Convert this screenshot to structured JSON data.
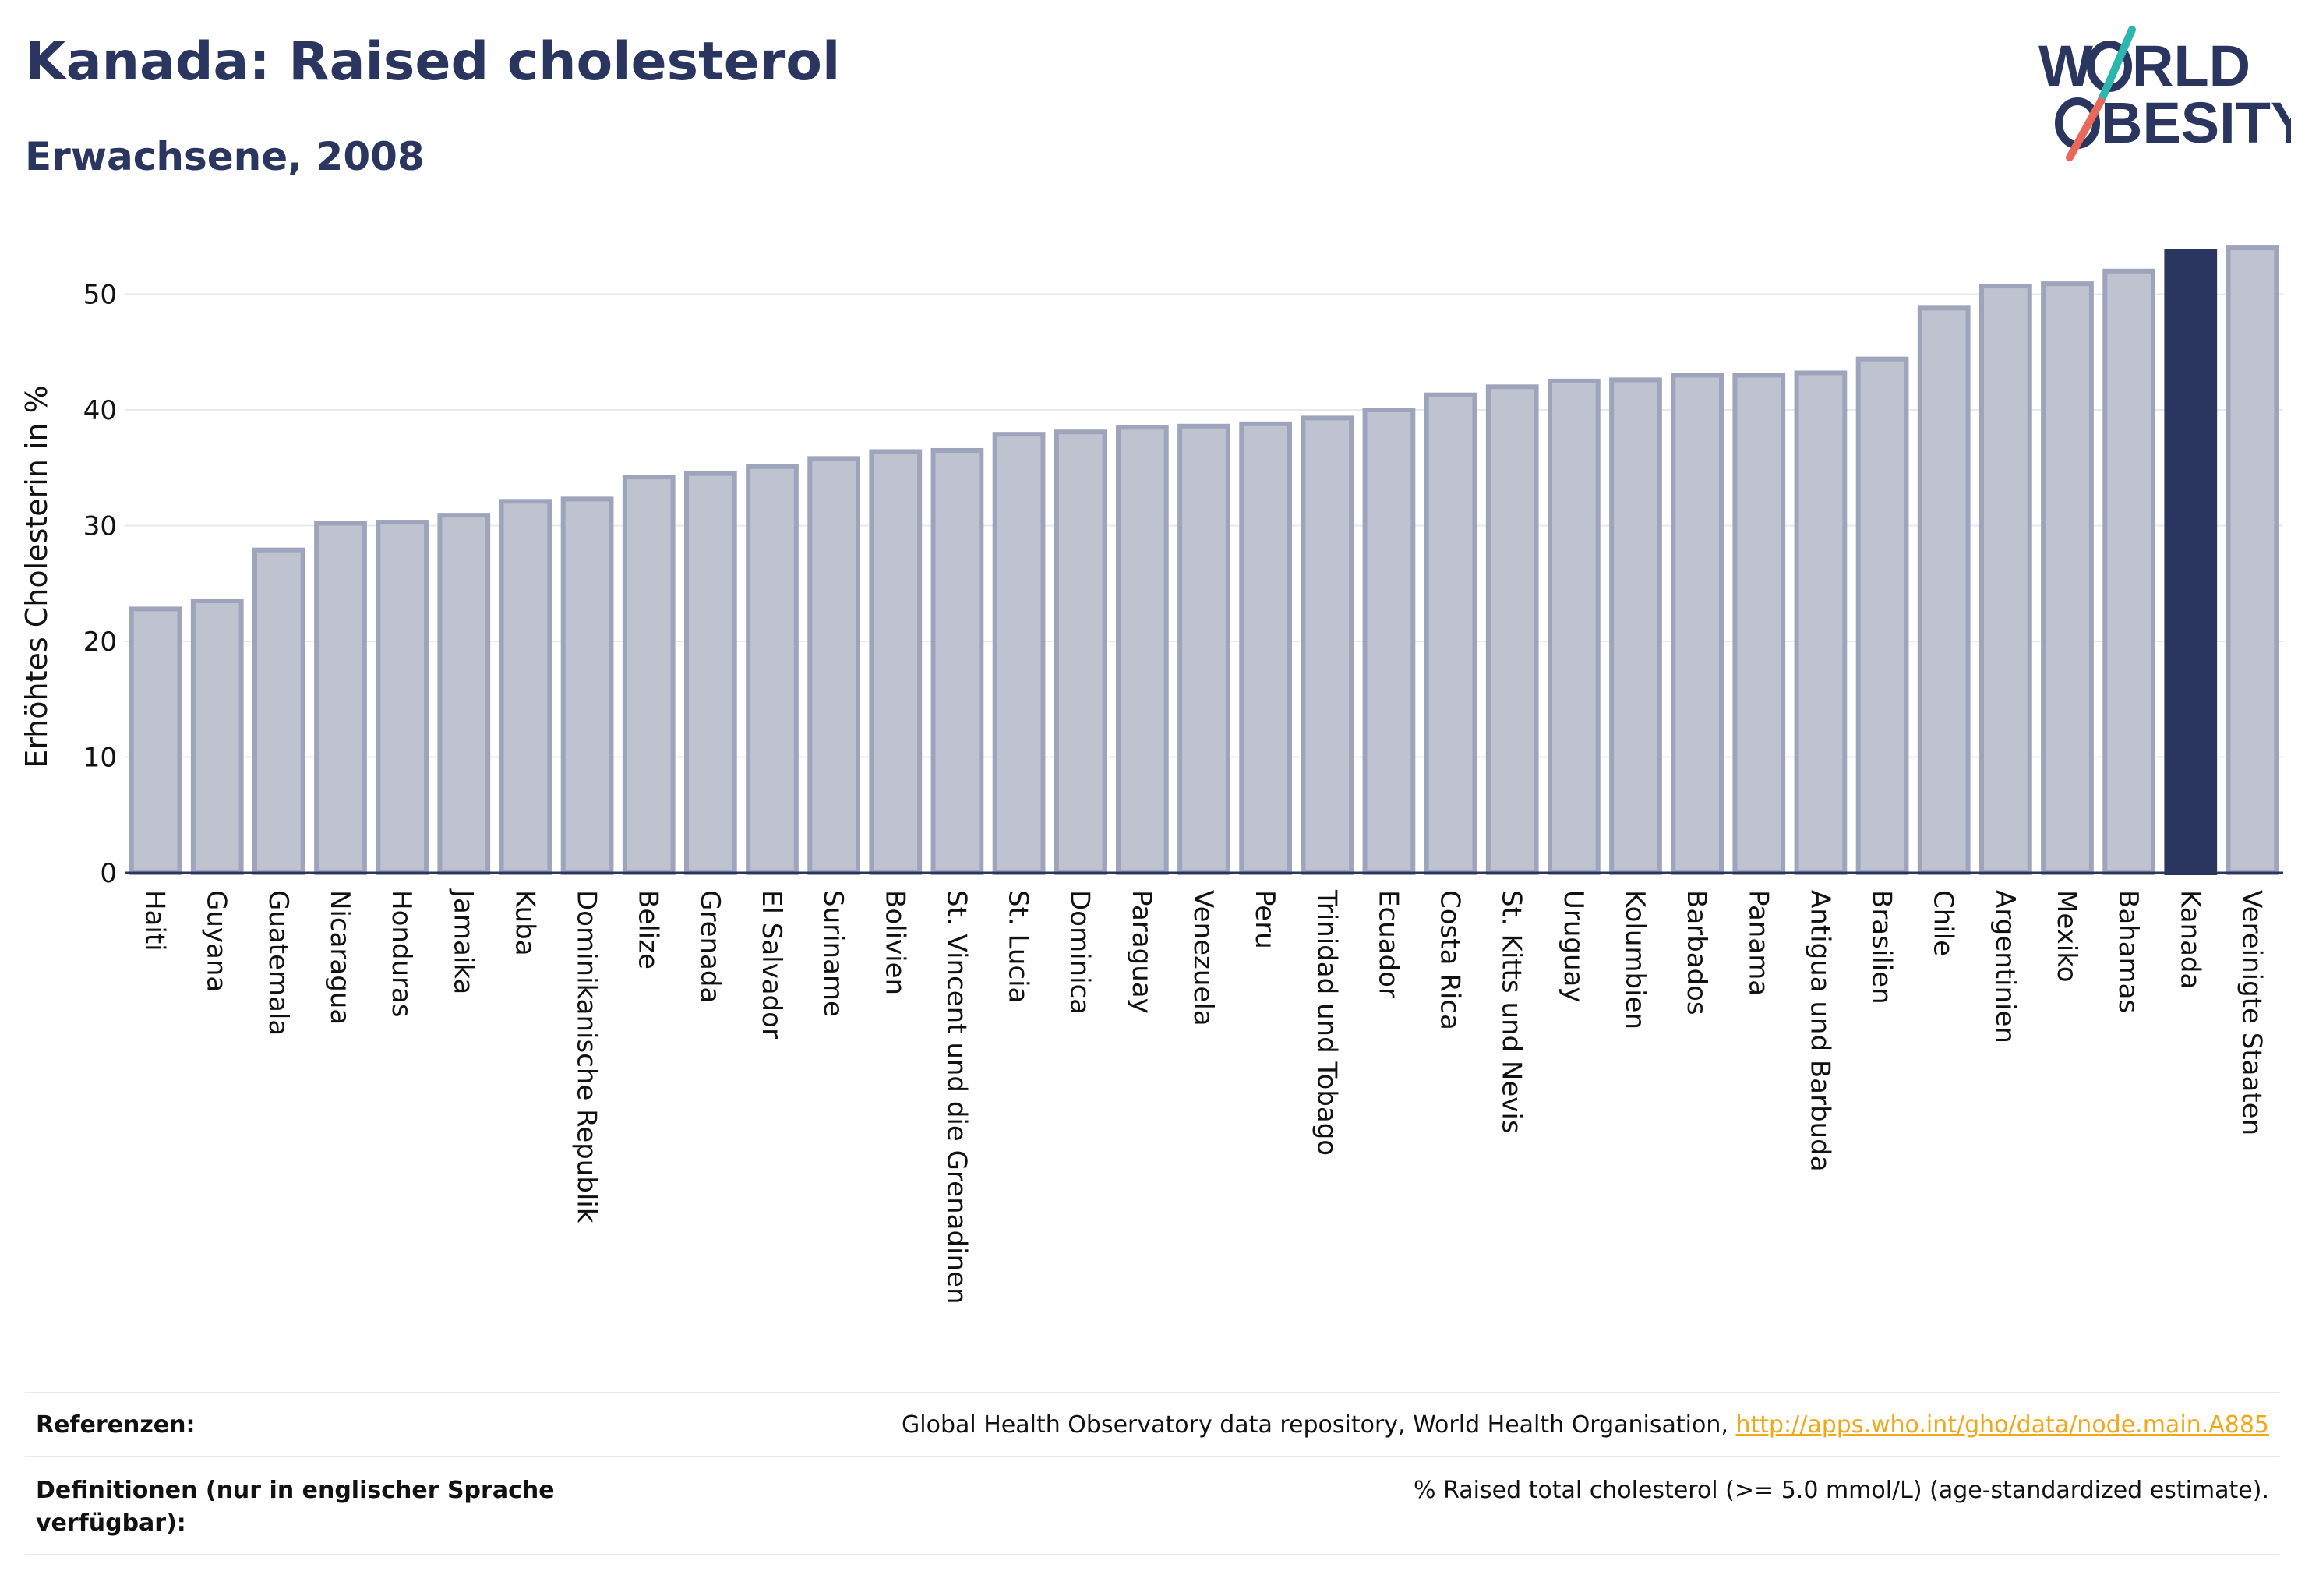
{
  "header": {
    "title": "Kanada: Raised cholesterol",
    "subtitle": "Erwachsene, 2008"
  },
  "logo": {
    "line1": "W",
    "line1b": "RLD",
    "line2": "BESITY",
    "colors": {
      "navy": "#2b3660",
      "teal": "#2bb6b0",
      "coral": "#e8685a"
    }
  },
  "chart_data": {
    "type": "bar",
    "title": "Kanada: Raised cholesterol",
    "subtitle": "Erwachsene, 2008",
    "ylabel": "Erhöhtes Cholesterin in %",
    "xlabel": "",
    "ylim": [
      0,
      55
    ],
    "yticks": [
      0,
      10,
      20,
      30,
      40,
      50
    ],
    "grid": true,
    "highlight": "Kanada",
    "colors": {
      "bar": "#bfc3d0",
      "bar_edge": "#9ea4bc",
      "highlight": "#2b3660"
    },
    "categories": [
      "Haiti",
      "Guyana",
      "Guatemala",
      "Nicaragua",
      "Honduras",
      "Jamaika",
      "Kuba",
      "Dominikanische Republik",
      "Belize",
      "Grenada",
      "El Salvador",
      "Suriname",
      "Bolivien",
      "St. Vincent und die Grenadinen",
      "St. Lucia",
      "Dominica",
      "Paraguay",
      "Venezuela",
      "Peru",
      "Trinidad und Tobago",
      "Ecuador",
      "Costa Rica",
      "St. Kitts und Nevis",
      "Uruguay",
      "Kolumbien",
      "Barbados",
      "Panama",
      "Antigua und Barbuda",
      "Brasilien",
      "Chile",
      "Argentinien",
      "Mexiko",
      "Bahamas",
      "Kanada",
      "Vereinigte Staaten"
    ],
    "values": [
      22.8,
      23.5,
      27.9,
      30.2,
      30.3,
      30.9,
      32.1,
      32.3,
      34.2,
      34.5,
      35.1,
      35.8,
      36.4,
      36.5,
      37.9,
      38.1,
      38.5,
      38.6,
      38.8,
      39.3,
      40.0,
      41.3,
      42.0,
      42.5,
      42.6,
      43.0,
      43.0,
      43.2,
      44.4,
      48.8,
      50.7,
      50.9,
      52.0,
      53.7,
      54.0
    ]
  },
  "footer": {
    "references_label": "Referenzen:",
    "references_text": "Global Health Observatory data repository, World Health Organisation, ",
    "references_link": "http://apps.who.int/gho/data/node.main.A885",
    "definitions_label": "Definitionen (nur in englischer Sprache verfügbar):",
    "definitions_text": "% Raised total cholesterol (>= 5.0 mmol/L) (age-standardized estimate)."
  }
}
